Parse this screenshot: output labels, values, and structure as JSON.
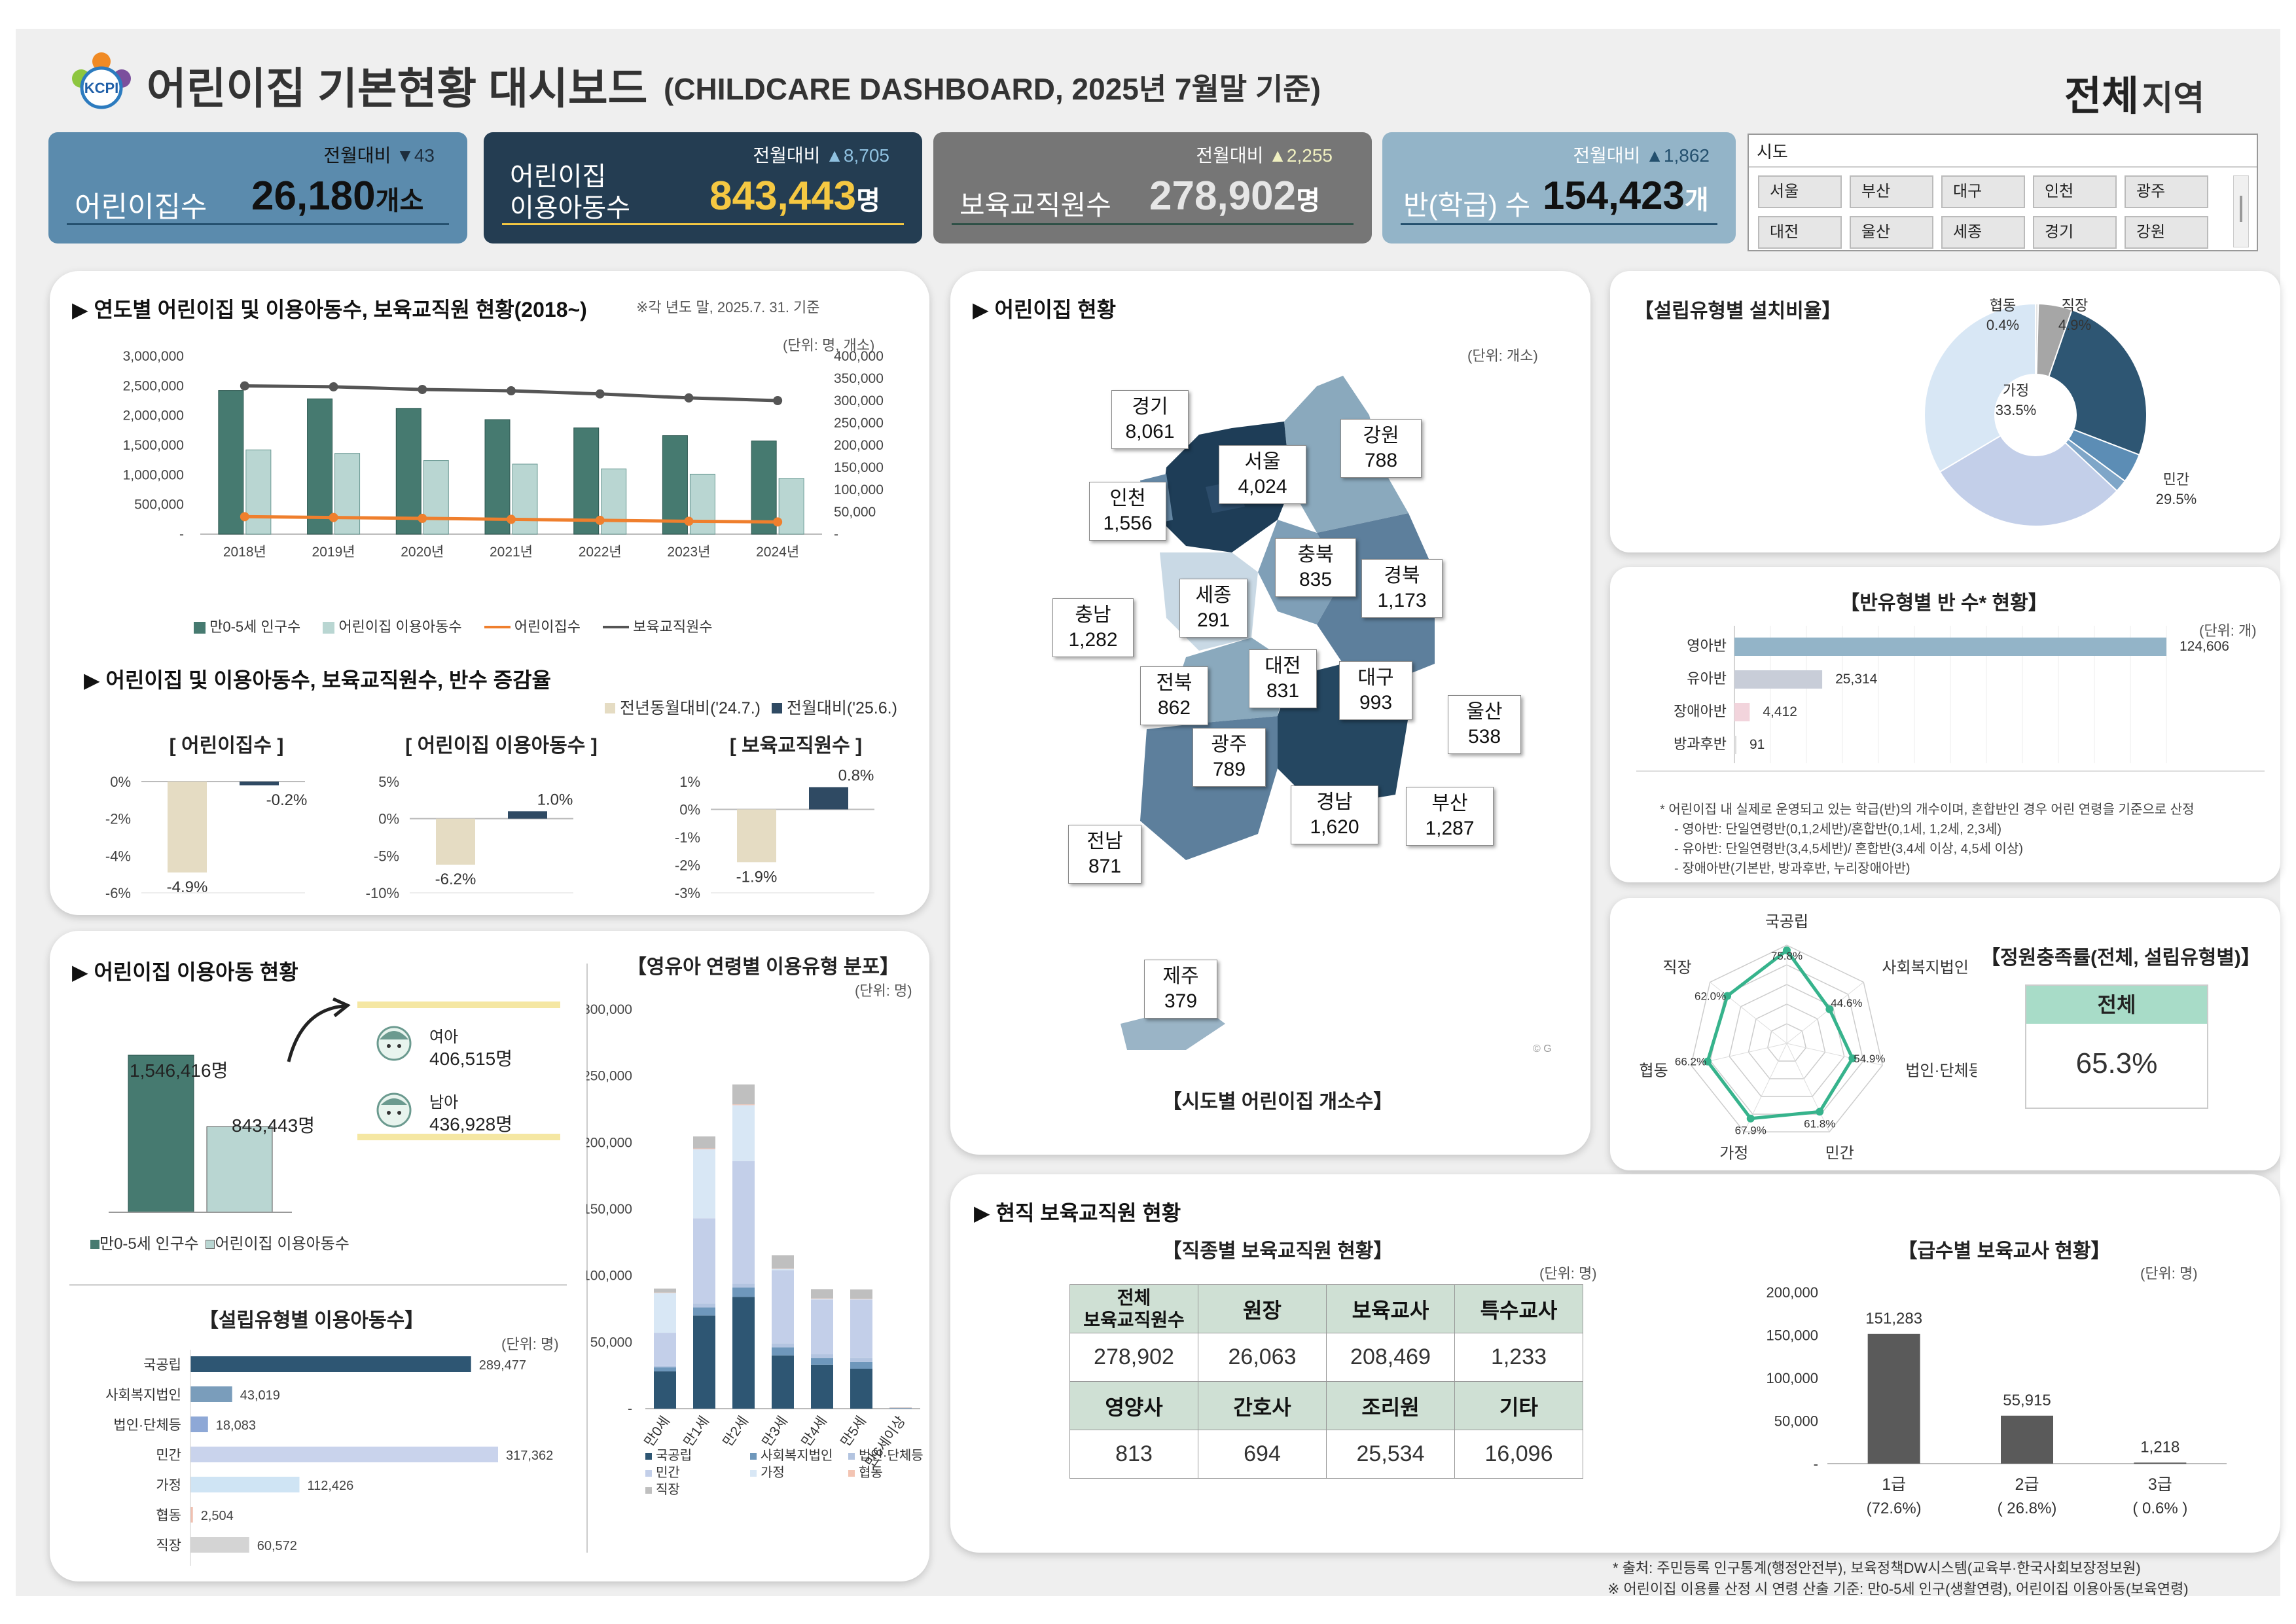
{
  "header": {
    "title": "어린이집 기본현황 대시보드",
    "subtitle": "(CHILDCARE DASHBOARD, 2025년 7월말 기준)",
    "logo_text": "KCPI",
    "region_value": "전체",
    "region_suffix": "지역"
  },
  "kpis": [
    {
      "label": "어린이집수",
      "value": "26,180",
      "unit": "개소",
      "delta_label": "전월대비",
      "delta": "▼43"
    },
    {
      "label": "어린이집\n이용아동수",
      "value": "843,443",
      "unit": "명",
      "delta_label": "전월대비",
      "delta": "▲8,705"
    },
    {
      "label": "보육교직원수",
      "value": "278,902",
      "unit": "명",
      "delta_label": "전월대비",
      "delta": "▲2,255"
    },
    {
      "label": "반(학급) 수",
      "value": "154,423",
      "unit": "개",
      "delta_label": "전월대비",
      "delta": "▲1,862"
    }
  ],
  "filter": {
    "title": "시도",
    "row1": [
      "서울",
      "부산",
      "대구",
      "인천",
      "광주"
    ],
    "row2": [
      "대전",
      "울산",
      "세종",
      "경기",
      "강원"
    ]
  },
  "trend": {
    "title": "▶ 연도별 어린이집 및 이용아동수, 보육교직원 현황(2018~)",
    "note": "※각 년도 말, 2025.7. 31. 기준",
    "unit": "(단위: 명, 개소)",
    "left_ticks": [
      "3,000,000",
      "2,500,000",
      "2,000,000",
      "1,500,000",
      "1,000,000",
      "500,000",
      "-"
    ],
    "right_ticks": [
      "400,000",
      "350,000",
      "300,000",
      "250,000",
      "200,000",
      "150,000",
      "100,000",
      "50,000",
      "-"
    ],
    "legend": [
      "만0-5세 인구수",
      "어린이집 이용아동수",
      "어린이집수",
      "보육교직원수"
    ]
  },
  "change": {
    "title": "▶ 어린이집 및 이용아동수, 보육교직원수, 반수 증감율",
    "legend_a": "전년동월대비('24.7.)",
    "legend_b": "전월대비('25.6.)",
    "panels": [
      {
        "title": "[ 어린이집수 ]",
        "ticks": [
          "0%",
          "-2%",
          "-4%",
          "-6%"
        ],
        "a": "-4.9%",
        "b": "-0.2%"
      },
      {
        "title": "[ 어린이집 이용아동수 ]",
        "ticks": [
          "5%",
          "0%",
          "-5%",
          "-10%"
        ],
        "a": "-6.2%",
        "b": "1.0%"
      },
      {
        "title": "[ 보육교직원수 ]",
        "ticks": [
          "1%",
          "0%",
          "-1%",
          "-2%",
          "-3%"
        ],
        "a": "-1.9%",
        "b": "0.8%"
      }
    ]
  },
  "usage": {
    "title": "▶ 어린이집 이용아동 현황",
    "pop_value": "1,546,416명",
    "use_value": "843,443명",
    "girl_label": "여아",
    "girl_value": "406,515명",
    "boy_label": "남아",
    "boy_value": "436,928명",
    "legend": [
      "만0-5세 인구수",
      "어린이집 이용아동수"
    ]
  },
  "by_type": {
    "title": "【설립유형별 이용아동수】",
    "unit": "(단위: 명)",
    "rows": [
      {
        "label": "국공립",
        "value": "289,477"
      },
      {
        "label": "사회복지법인",
        "value": "43,019"
      },
      {
        "label": "법인·단체등",
        "value": "18,083"
      },
      {
        "label": "민간",
        "value": "317,362"
      },
      {
        "label": "가정",
        "value": "112,426"
      },
      {
        "label": "협동",
        "value": "2,504"
      },
      {
        "label": "직장",
        "value": "60,572"
      }
    ]
  },
  "age_dist": {
    "title": "【영유아 연령별 이용유형 분포】",
    "unit": "(단위: 명)",
    "ticks": [
      "300,000",
      "250,000",
      "200,000",
      "150,000",
      "100,000",
      "50,000",
      "-"
    ],
    "categories": [
      "만0세",
      "만1세",
      "만2세",
      "만3세",
      "만4세",
      "만5세",
      "만6세이상"
    ],
    "legend": [
      "국공립",
      "사회복지법인",
      "법인·단체등",
      "민간",
      "가정",
      "협동",
      "직장"
    ]
  },
  "map": {
    "title": "▶ 어린이집 현황",
    "unit": "(단위: 개소)",
    "caption": "【시도별 어린이집 개소수】",
    "credit": "© G"
  },
  "pie": {
    "title": "【설립유형별 설치비율】"
  },
  "class_type": {
    "title": "【반유형별 반 수* 현황】",
    "unit": "(단위: 개)",
    "note1": "* 어린이집 내 실제로 운영되고 있는 학급(반)의 개수이며, 혼합반인 경우 어린 연령을 기준으로 산정",
    "note2": "- 영아반: 단일연령반(0,1,2세반)/혼합반(0,1세, 1,2세, 2,3세)",
    "note3": "- 유아반: 단일연령반(3,4,5세반)/ 혼합반(3,4세 이상, 4,5세 이상)",
    "note4": "- 장애아반(기본반, 방과후반, 누리장애아반)"
  },
  "radar": {
    "title": "【정원충족률(전체, 설립유형별)】",
    "total_label": "전체",
    "total_value": "65.3%"
  },
  "staff": {
    "title": "▶ 현직 보육교직원 현황",
    "job_title": "【직종별 보육교직원 현황】",
    "job_unit": "(단위: 명)",
    "head1": [
      "전체\n보육교직원수",
      "원장",
      "보육교사",
      "특수교사"
    ],
    "val1": [
      "278,902",
      "26,063",
      "208,469",
      "1,233"
    ],
    "head2": [
      "영양사",
      "간호사",
      "조리원",
      "기타"
    ],
    "val2": [
      "813",
      "694",
      "25,534",
      "16,096"
    ],
    "grade_title": "【급수별 보육교사 현황】",
    "grade_unit": "(단위: 명)",
    "grade_ticks": [
      "200,000",
      "150,000",
      "100,000",
      "50,000",
      "-"
    ]
  },
  "footer": {
    "line1": "* 출처: 주민등록 인구통계(행정안전부), 보육정책DW시스템(교육부·한국사회보장정보원)",
    "line2": "※ 어린이집 이용률 산정 시 연령 산출 기준: 만0-5세 인구(생활연령), 어린이집 이용아동(보육연령)"
  },
  "colors": {
    "kpi1": "#5b8bad",
    "kpi2": "#243d52",
    "kpi3": "#767676",
    "kpi4": "#93b4c8",
    "yellow": "#f5c842",
    "teal": "#467a70",
    "lightteal": "#b9d6d2",
    "orange": "#ef7f2d",
    "gray": "#555555",
    "navy": "#2e5673"
  },
  "chart_data": [
    {
      "type": "bar",
      "title": "▶ 연도별 어린이집 및 이용아동수, 보육교직원 현황(2018~)",
      "categories": [
        "2018년",
        "2019년",
        "2020년",
        "2021년",
        "2022년",
        "2023년",
        "2024년"
      ],
      "ylim": [
        0,
        3000000
      ],
      "y2lim": [
        0,
        400000
      ],
      "series": [
        {
          "name": "만0-5세 인구수",
          "axis": "left",
          "type": "bar",
          "values": [
            2420000,
            2280000,
            2120000,
            1930000,
            1790000,
            1660000,
            1570000
          ]
        },
        {
          "name": "어린이집 이용아동수",
          "axis": "left",
          "type": "bar",
          "values": [
            1420000,
            1360000,
            1240000,
            1180000,
            1100000,
            1010000,
            940000
          ]
        },
        {
          "name": "어린이집수",
          "axis": "right",
          "type": "line",
          "values": [
            39200,
            37400,
            35400,
            33200,
            31000,
            28900,
            27400
          ]
        },
        {
          "name": "보육교직원수",
          "axis": "right",
          "type": "line",
          "values": [
            333000,
            331000,
            325000,
            322000,
            315000,
            306000,
            300000
          ]
        }
      ],
      "legend": "bottom"
    },
    {
      "type": "bar",
      "title": "[ 어린이집수 ]",
      "categories": [
        "전년동월대비('24.7.)",
        "전월대비('25.6.)"
      ],
      "values": [
        -4.9,
        -0.2
      ],
      "ylim": [
        -6,
        0
      ]
    },
    {
      "type": "bar",
      "title": "[ 어린이집 이용아동수 ]",
      "categories": [
        "전년동월대비('24.7.)",
        "전월대비('25.6.)"
      ],
      "values": [
        -6.2,
        1.0
      ],
      "ylim": [
        -10,
        5
      ]
    },
    {
      "type": "bar",
      "title": "[ 보육교직원수 ]",
      "categories": [
        "전년동월대비('24.7.)",
        "전월대비('25.6.)"
      ],
      "values": [
        -1.9,
        0.8
      ],
      "ylim": [
        -3,
        1
      ]
    },
    {
      "type": "bar",
      "title": "",
      "categories": [
        "만0-5세 인구수",
        "어린이집 이용아동수"
      ],
      "values": [
        1546416,
        843443
      ]
    },
    {
      "type": "bar",
      "title": "【설립유형별 이용아동수】",
      "orientation": "horizontal",
      "categories": [
        "국공립",
        "사회복지법인",
        "법인·단체등",
        "민간",
        "가정",
        "협동",
        "직장"
      ],
      "values": [
        289477,
        43019,
        18083,
        317362,
        112426,
        2504,
        60572
      ]
    },
    {
      "type": "bar",
      "stacked": true,
      "title": "【영유아 연령별 이용유형 분포】",
      "categories": [
        "만0세",
        "만1세",
        "만2세",
        "만3세",
        "만4세",
        "만5세",
        "만6세이상"
      ],
      "ylim": [
        0,
        300000
      ],
      "series": [
        {
          "name": "국공립",
          "values": [
            28000,
            70000,
            84000,
            40000,
            33000,
            30000,
            300
          ]
        },
        {
          "name": "사회복지법인",
          "values": [
            3000,
            6000,
            7000,
            6000,
            5000,
            5000,
            100
          ]
        },
        {
          "name": "법인·단체등",
          "values": [
            1000,
            3000,
            3000,
            3000,
            3000,
            3000,
            50
          ]
        },
        {
          "name": "민간",
          "values": [
            25000,
            64000,
            92000,
            55000,
            41000,
            44000,
            300
          ]
        },
        {
          "name": "가정",
          "values": [
            30000,
            52000,
            42000,
            1000,
            500,
            300,
            50
          ]
        },
        {
          "name": "협동",
          "values": [
            200,
            500,
            600,
            300,
            300,
            300,
            0
          ]
        },
        {
          "name": "직장",
          "values": [
            3000,
            9000,
            15000,
            10000,
            7000,
            7000,
            100
          ]
        }
      ],
      "legend": "bottom"
    },
    {
      "type": "pie",
      "title": "【설립유형별 설치비율】",
      "categories": [
        "국공립",
        "사회복지법인",
        "법인·단체등",
        "민간",
        "가정",
        "협동",
        "직장"
      ],
      "values": [
        25.5,
        4.3,
        1.8,
        29.5,
        33.5,
        0.4,
        4.9
      ],
      "labels": [
        "25.5%",
        "4.3%",
        "1.8%",
        "29.5%",
        "33.5%",
        "0.4%",
        "4.9%"
      ]
    },
    {
      "type": "bar",
      "orientation": "horizontal",
      "title": "【반유형별 반 수* 현황】",
      "categories": [
        "영아반",
        "유아반",
        "장애아반",
        "방과후반"
      ],
      "values": [
        124606,
        25314,
        4412,
        91
      ],
      "labels": [
        "124,606",
        "25,314",
        "4,412",
        "91"
      ]
    },
    {
      "type": "radar",
      "title": "【정원충족률(전체, 설립유형별)】",
      "categories": [
        "국공립",
        "사회복지법인",
        "법인·단체등",
        "민간",
        "가정",
        "협동",
        "직장"
      ],
      "values": [
        75.8,
        44.6,
        54.9,
        61.8,
        67.9,
        66.2,
        62.0
      ],
      "labels": [
        "75.8%",
        "44.6%",
        "54.9%",
        "61.8%",
        "67.9%",
        "66.2%",
        "62.0%"
      ]
    },
    {
      "type": "bar",
      "title": "【급수별 보육교사 현황】",
      "categories": [
        "1급",
        "2급",
        "3급"
      ],
      "sublabels": [
        "(72.6%)",
        "( 26.8%)",
        "( 0.6% )"
      ],
      "values": [
        151283,
        55915,
        1218
      ],
      "labels": [
        "151,283",
        "55,915",
        "1,218"
      ],
      "ylim": [
        0,
        200000
      ]
    }
  ],
  "map_regions": [
    {
      "name": "경기",
      "value": "8,061"
    },
    {
      "name": "서울",
      "value": "4,024"
    },
    {
      "name": "강원",
      "value": "788"
    },
    {
      "name": "인천",
      "value": "1,556"
    },
    {
      "name": "충북",
      "value": "835"
    },
    {
      "name": "경북",
      "value": "1,173"
    },
    {
      "name": "세종",
      "value": "291"
    },
    {
      "name": "충남",
      "value": "1,282"
    },
    {
      "name": "대전",
      "value": "831"
    },
    {
      "name": "대구",
      "value": "993"
    },
    {
      "name": "전북",
      "value": "862"
    },
    {
      "name": "울산",
      "value": "538"
    },
    {
      "name": "광주",
      "value": "789"
    },
    {
      "name": "경남",
      "value": "1,620"
    },
    {
      "name": "부산",
      "value": "1,287"
    },
    {
      "name": "전남",
      "value": "871"
    },
    {
      "name": "제주",
      "value": "379"
    }
  ]
}
